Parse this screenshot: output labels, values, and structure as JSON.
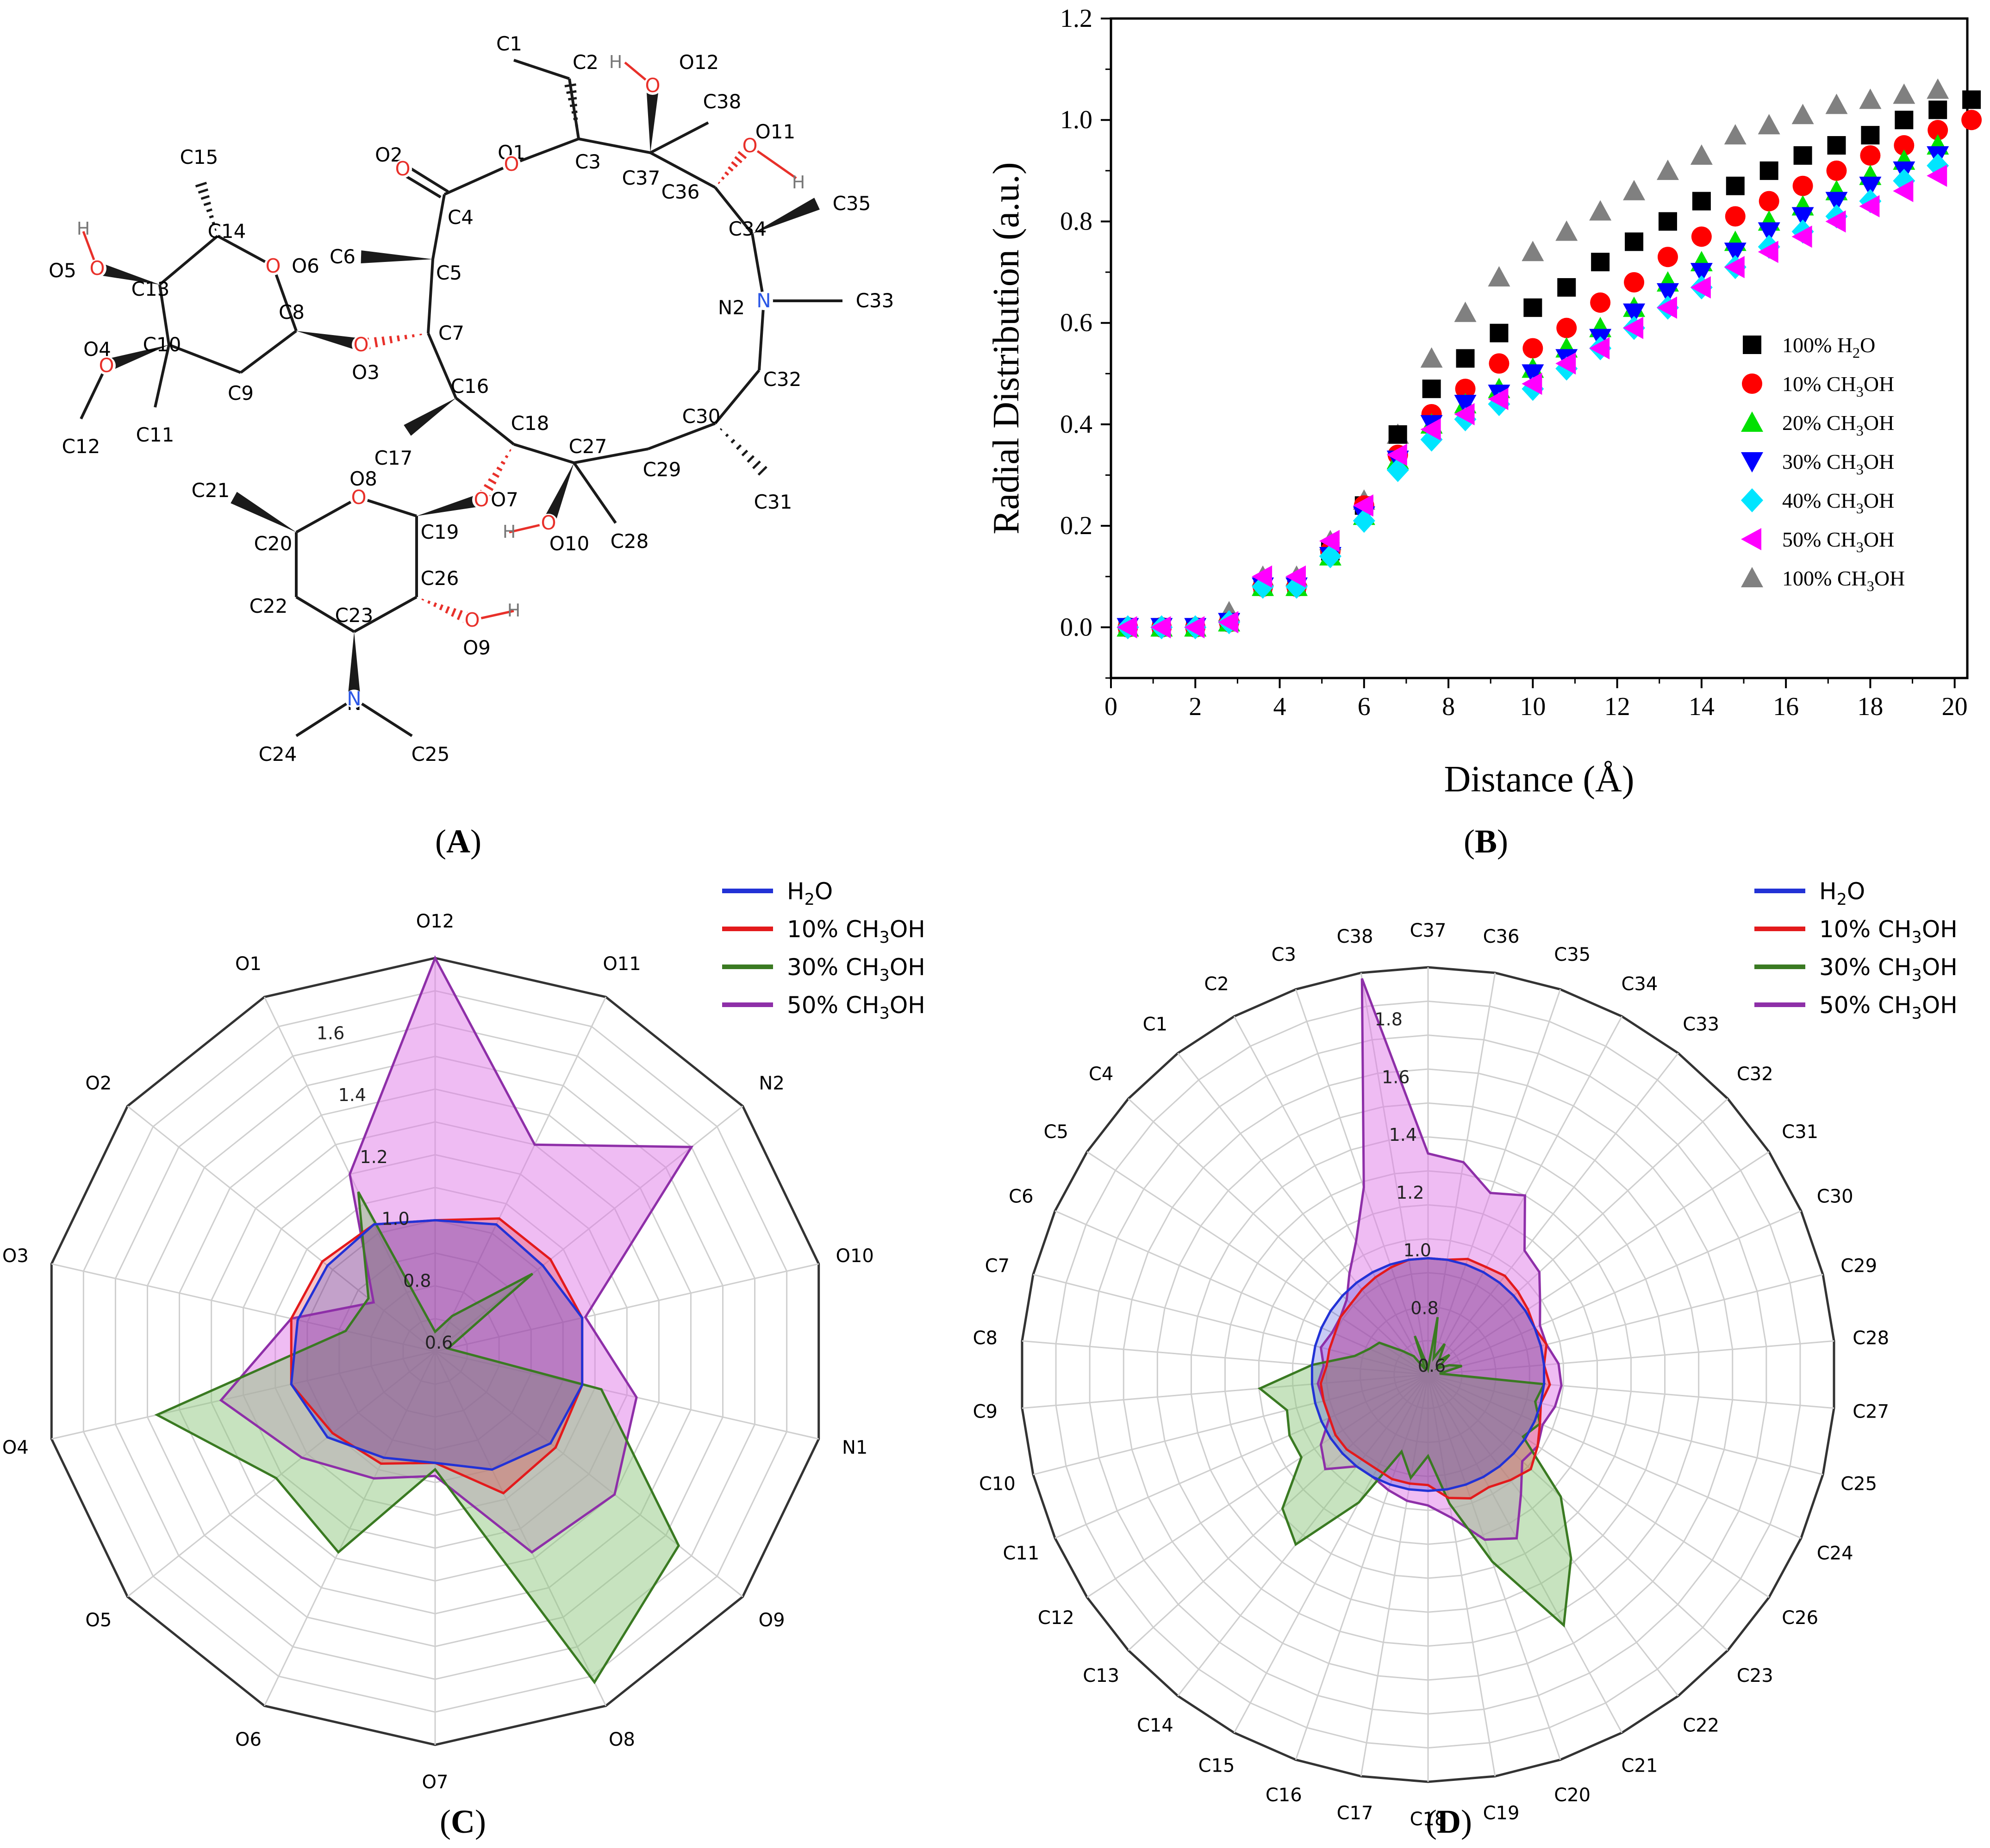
{
  "colors": {
    "carbon": "#1a1a1a",
    "oxygen": "#e8302a",
    "nitrogen": "#2b57e6",
    "hydrogen": "#777777",
    "radar_h2o": "#2232d6",
    "radar_10": "#e31a1c",
    "radar_30": "#3a7a22",
    "radar_50": "#8e2fa8",
    "radar_50_fill": "#e07ae8",
    "radar_30_fill": "#8fc77f"
  },
  "panels": {
    "a": {
      "label_pre": "(",
      "letter": "A",
      "label_post": ")"
    },
    "b": {
      "label_pre": "(",
      "letter": "B",
      "label_post": ")"
    },
    "c": {
      "label_pre": "(",
      "letter": "C",
      "label_post": ")"
    },
    "d": {
      "label_pre": "(",
      "letter": "D",
      "label_post": ")"
    }
  },
  "molecule": {
    "labels": {
      "c1": "C1",
      "c2": "C2",
      "c3": "C3",
      "c4": "C4",
      "c5": "C5",
      "c6": "C6",
      "c7": "C7",
      "c8": "C8",
      "c9": "C9",
      "c10": "C10",
      "c11": "C11",
      "c12": "C12",
      "c13": "C13",
      "c14": "C14",
      "c15": "C15",
      "c16": "C16",
      "c17": "C17",
      "c18": "C18",
      "c19": "C19",
      "c20": "C20",
      "c21": "C21",
      "c22": "C22",
      "c23": "C23",
      "c24": "C24",
      "c25": "C25",
      "c26": "C26",
      "c27": "C27",
      "c28": "C28",
      "c29": "C29",
      "c30": "C30",
      "c31": "C31",
      "c32": "C32",
      "c33": "C33",
      "c34": "C34",
      "c35": "C35",
      "c36": "C36",
      "c37": "C37",
      "c38": "C38",
      "o1": "O1",
      "o2": "O2",
      "o3": "O3",
      "o4": "O4",
      "o5": "O5",
      "o6": "O6",
      "o7": "O7",
      "o8": "O8",
      "o9": "O9",
      "o10": "O10",
      "o11": "O11",
      "o12": "O12",
      "n1": "N",
      "n2": "N2",
      "h": "H",
      "o": "O"
    }
  },
  "chart_data": [
    {
      "type": "scatter",
      "panel": "B",
      "xlabel": "Distance (Å)",
      "ylabel": "Radial Distribution (a.u.)",
      "xlim": [
        0,
        20.3
      ],
      "ylim": [
        -0.1,
        1.2
      ],
      "xticks": [
        "0",
        "2",
        "4",
        "6",
        "8",
        "10",
        "12",
        "14",
        "16",
        "18",
        "20"
      ],
      "yticks": [
        "0.0",
        "0.2",
        "0.4",
        "0.6",
        "0.8",
        "1.0",
        "1.2"
      ],
      "x": [
        0.4,
        1.2,
        2.0,
        2.8,
        3.6,
        4.4,
        5.2,
        6.0,
        6.8,
        7.6,
        8.4,
        9.2,
        10.0,
        10.8,
        11.6,
        12.4,
        13.2,
        14.0,
        14.8,
        15.6,
        16.4,
        17.2,
        18.0,
        18.8,
        19.6,
        20.4
      ],
      "series": [
        {
          "name": "100% H2O",
          "legend_main": "100% H",
          "legend_sub": "2",
          "legend_tail": "O",
          "marker": "square",
          "color": "#000000",
          "values": [
            0.0,
            0.0,
            0.0,
            0.01,
            0.08,
            0.08,
            0.15,
            0.24,
            0.38,
            0.47,
            0.53,
            0.58,
            0.63,
            0.67,
            0.72,
            0.76,
            0.8,
            0.84,
            0.87,
            0.9,
            0.93,
            0.95,
            0.97,
            1.0,
            1.02,
            1.04
          ]
        },
        {
          "name": "10% CH3OH",
          "legend_main": "10% CH",
          "legend_sub": "3",
          "legend_tail": "OH",
          "marker": "circle",
          "color": "#ff0000",
          "values": [
            0.0,
            0.0,
            0.0,
            0.01,
            0.08,
            0.08,
            0.15,
            0.24,
            0.34,
            0.42,
            0.47,
            0.52,
            0.55,
            0.59,
            0.64,
            0.68,
            0.73,
            0.77,
            0.81,
            0.84,
            0.87,
            0.9,
            0.93,
            0.95,
            0.98,
            1.0
          ]
        },
        {
          "name": "20% CH3OH",
          "legend_main": "20% CH",
          "legend_sub": "3",
          "legend_tail": "OH",
          "marker": "triangle-up",
          "color": "#00e000",
          "values": [
            0.0,
            0.0,
            0.0,
            0.01,
            0.08,
            0.08,
            0.14,
            0.22,
            0.33,
            0.4,
            0.44,
            0.47,
            0.51,
            0.55,
            0.59,
            0.63,
            0.68,
            0.72,
            0.76,
            0.8,
            0.83,
            0.86,
            0.89,
            0.92,
            0.95
          ]
        },
        {
          "name": "30% CH3OH",
          "legend_main": "30% CH",
          "legend_sub": "3",
          "legend_tail": "OH",
          "marker": "triangle-down",
          "color": "#0000ff",
          "values": [
            0.0,
            0.0,
            0.0,
            0.01,
            0.08,
            0.08,
            0.14,
            0.22,
            0.33,
            0.4,
            0.44,
            0.46,
            0.5,
            0.53,
            0.57,
            0.62,
            0.66,
            0.7,
            0.74,
            0.78,
            0.81,
            0.84,
            0.87,
            0.9,
            0.93
          ]
        },
        {
          "name": "40% CH3OH",
          "legend_main": "40% CH",
          "legend_sub": "3",
          "legend_tail": "OH",
          "marker": "diamond",
          "color": "#00e5ff",
          "values": [
            0.0,
            0.0,
            0.0,
            0.01,
            0.08,
            0.08,
            0.14,
            0.21,
            0.31,
            0.37,
            0.41,
            0.44,
            0.47,
            0.51,
            0.55,
            0.59,
            0.63,
            0.67,
            0.71,
            0.75,
            0.78,
            0.81,
            0.84,
            0.88,
            0.91
          ]
        },
        {
          "name": "50% CH3OH",
          "legend_main": "50% CH",
          "legend_sub": "3",
          "legend_tail": "OH",
          "marker": "triangle-left",
          "color": "#ff00ff",
          "values": [
            0.0,
            0.0,
            0.0,
            0.01,
            0.1,
            0.1,
            0.17,
            0.24,
            0.34,
            0.39,
            0.42,
            0.45,
            0.48,
            0.52,
            0.55,
            0.59,
            0.63,
            0.67,
            0.71,
            0.74,
            0.77,
            0.8,
            0.83,
            0.86,
            0.89
          ]
        },
        {
          "name": "100% CH3OH",
          "legend_main": "100% CH",
          "legend_sub": "3",
          "legend_tail": "OH",
          "marker": "triangle-up",
          "color": "#808080",
          "values": [
            0.0,
            0.0,
            0.0,
            0.03,
            0.1,
            0.1,
            0.17,
            0.25,
            0.38,
            0.53,
            0.62,
            0.69,
            0.74,
            0.78,
            0.82,
            0.86,
            0.9,
            0.93,
            0.97,
            0.99,
            1.01,
            1.03,
            1.04,
            1.05,
            1.06
          ]
        }
      ]
    },
    {
      "type": "radar",
      "panel": "C",
      "rlim": [
        0.6,
        1.8
      ],
      "rticks": [
        "0.6",
        "0.8",
        "1.0",
        "1.2",
        "1.4",
        "1.6"
      ],
      "categories": [
        "O12",
        "O11",
        "N2",
        "O10",
        "N1",
        "O9",
        "O8",
        "O7",
        "O6",
        "O5",
        "O4",
        "O3",
        "O2",
        "O1"
      ],
      "series": [
        {
          "name": "H2O",
          "legend_main": "H",
          "legend_sub": "2",
          "legend_tail": "O",
          "color": "#2232d6",
          "values": [
            1.0,
            1.03,
            1.02,
            1.06,
            1.06,
            1.05,
            1.0,
            0.94,
            0.96,
            1.02,
            1.05,
            1.03,
            1.02,
            1.03
          ]
        },
        {
          "name": "10% CH3OH",
          "legend_main": "10% CH",
          "legend_sub": "3",
          "legend_tail": "OH",
          "color": "#e31a1c",
          "values": [
            1.0,
            1.05,
            1.05,
            1.06,
            1.06,
            1.07,
            1.08,
            0.94,
            0.98,
            1.0,
            1.05,
            1.05,
            1.04,
            1.03
          ]
        },
        {
          "name": "30% CH3OH",
          "legend_main": "30% CH",
          "legend_sub": "3",
          "legend_tail": "OH",
          "color": "#3a7a22",
          "values": [
            0.66,
            0.72,
            0.98,
            0.64,
            1.12,
            1.55,
            1.72,
            0.96,
            1.28,
            1.22,
            1.47,
            0.88,
            0.86,
            1.14
          ]
        },
        {
          "name": "50% CH3OH",
          "legend_main": "50% CH",
          "legend_sub": "3",
          "legend_tail": "OH",
          "color": "#8e2fa8",
          "values": [
            1.8,
            1.3,
            1.6,
            1.07,
            1.23,
            1.3,
            1.28,
            0.98,
            1.03,
            1.12,
            1.27,
            1.05,
            0.84,
            1.2
          ]
        }
      ]
    },
    {
      "type": "radar",
      "panel": "D",
      "rlim": [
        0.6,
        2.0
      ],
      "rticks": [
        "0.6",
        "0.8",
        "1.0",
        "1.2",
        "1.4",
        "1.6",
        "1.8"
      ],
      "categories": [
        "C37",
        "C36",
        "C35",
        "C34",
        "C33",
        "C32",
        "C31",
        "C30",
        "C29",
        "C28",
        "C27",
        "C25",
        "C24",
        "C26",
        "C23",
        "C22",
        "C21",
        "C20",
        "C19",
        "C18",
        "C17",
        "C16",
        "C15",
        "C14",
        "C13",
        "C12",
        "C11",
        "C10",
        "C9",
        "C8",
        "C7",
        "C6",
        "C5",
        "C4",
        "C1",
        "C2",
        "C3",
        "C38"
      ],
      "series": [
        {
          "name": "H2O",
          "legend_main": "H",
          "legend_sub": "2",
          "legend_tail": "O",
          "color": "#2232d6",
          "values": [
            1.0,
            1.0,
            1.0,
            1.0,
            1.0,
            1.0,
            1.0,
            1.0,
            1.0,
            1.0,
            1.0,
            1.0,
            1.0,
            1.0,
            1.0,
            1.0,
            1.0,
            1.0,
            1.0,
            1.0,
            1.0,
            1.0,
            1.0,
            1.0,
            1.0,
            1.0,
            1.0,
            1.0,
            1.0,
            1.0,
            1.0,
            1.0,
            1.0,
            1.0,
            1.0,
            1.0,
            1.0,
            1.0
          ]
        },
        {
          "name": "10% CH3OH",
          "legend_main": "10% CH",
          "legend_sub": "3",
          "legend_tail": "OH",
          "color": "#e31a1c",
          "values": [
            1.0,
            1.0,
            1.02,
            1.02,
            1.03,
            1.02,
            1.01,
            1.0,
            1.02,
            1.0,
            1.02,
            1.0,
            1.02,
            1.05,
            1.08,
            1.06,
            1.04,
            1.05,
            1.03,
            0.98,
            0.98,
            0.98,
            0.97,
            0.97,
            0.98,
            0.98,
            0.97,
            0.97,
            0.97,
            0.95,
            0.95,
            0.95,
            0.96,
            0.96,
            0.97,
            0.98,
            0.99,
            1.0
          ]
        },
        {
          "name": "30% CH3OH",
          "legend_main": "30% CH",
          "legend_sub": "3",
          "legend_tail": "OH",
          "color": "#3a7a22",
          "values": [
            0.62,
            0.8,
            0.66,
            0.72,
            0.66,
            0.7,
            0.64,
            0.68,
            0.72,
            0.64,
            1.0,
            0.98,
            1.02,
            0.99,
            1.22,
            1.4,
            1.58,
            1.28,
            1.05,
            0.88,
            0.96,
            0.88,
            1.1,
            1.34,
            1.28,
            1.12,
            1.12,
            1.1,
            1.18,
            1.0,
            0.86,
            0.82,
            0.8,
            0.72,
            0.68,
            0.62,
            0.74,
            0.64
          ]
        },
        {
          "name": "50% CH3OH",
          "legend_main": "50% CH",
          "legend_sub": "3",
          "legend_tail": "OH",
          "color": "#8e2fa8",
          "values": [
            1.36,
            1.34,
            1.26,
            1.3,
            1.14,
            1.12,
            1.06,
            1.02,
            1.02,
            1.05,
            1.06,
            1.05,
            1.03,
            1.05,
            1.04,
            1.12,
            1.24,
            1.2,
            1.1,
            1.05,
            1.04,
            1.02,
            1.0,
            1.0,
            1.08,
            1.04,
            0.97,
            0.97,
            0.98,
            0.96,
            0.98,
            0.96,
            0.96,
            0.98,
            1.04,
            1.12,
            1.28,
            1.98
          ]
        }
      ]
    }
  ]
}
